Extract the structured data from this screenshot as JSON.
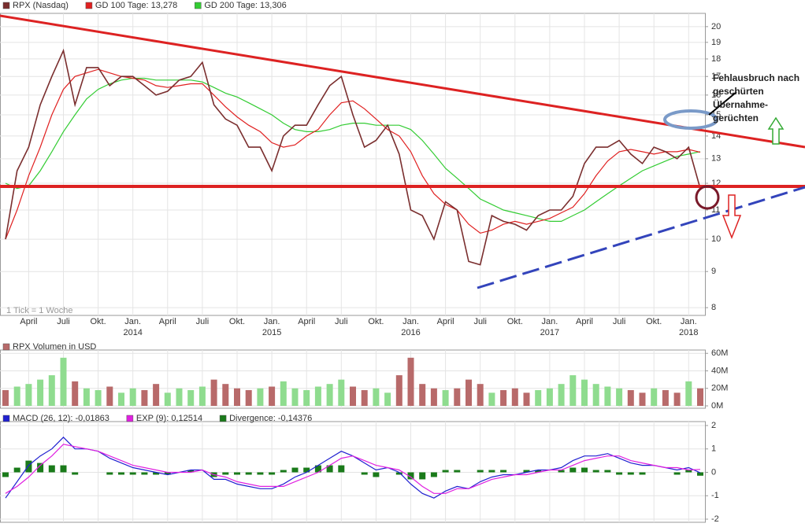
{
  "chart_data": [
    {
      "type": "line",
      "log_scale": true,
      "grid": true,
      "categories": [
        null,
        null,
        "April",
        null,
        null,
        "Juli",
        null,
        null,
        "Okt.",
        null,
        null,
        "Jan.",
        null,
        null,
        "April",
        null,
        null,
        "Juli",
        null,
        null,
        "Okt.",
        null,
        null,
        "Jan.",
        null,
        null,
        "April",
        null,
        null,
        "Juli",
        null,
        null,
        "Okt.",
        null,
        null,
        "Jan.",
        null,
        null,
        "April",
        null,
        null,
        "Juli",
        null,
        null,
        "Okt.",
        null,
        null,
        "Jan.",
        null,
        null,
        "April",
        null,
        null,
        "Juli",
        null,
        null,
        "Okt.",
        null,
        null,
        "Jan.",
        null
      ],
      "year_labels": [
        null,
        null,
        null,
        null,
        null,
        null,
        null,
        null,
        null,
        null,
        null,
        "2014",
        null,
        null,
        null,
        null,
        null,
        null,
        null,
        null,
        null,
        null,
        null,
        "2015",
        null,
        null,
        null,
        null,
        null,
        null,
        null,
        null,
        null,
        null,
        null,
        "2016",
        null,
        null,
        null,
        null,
        null,
        null,
        null,
        null,
        null,
        null,
        null,
        "2017",
        null,
        null,
        null,
        null,
        null,
        null,
        null,
        null,
        null,
        null,
        null,
        "2018",
        null
      ],
      "ylim": [
        7.82,
        20.83
      ],
      "yticks": [
        8,
        9,
        10,
        11,
        12,
        13,
        14,
        15,
        16,
        17,
        18,
        19,
        20
      ],
      "series": [
        {
          "name": "RPX (Nasdaq)",
          "color": "#7a2e2e",
          "values": [
            10.0,
            12.5,
            13.5,
            15.5,
            17.0,
            18.5,
            15.5,
            17.5,
            17.5,
            16.5,
            17.0,
            17.0,
            16.5,
            16.0,
            16.2,
            16.8,
            17.0,
            17.8,
            15.5,
            14.8,
            14.5,
            13.5,
            13.5,
            12.5,
            14.0,
            14.5,
            14.5,
            15.5,
            16.5,
            17.0,
            15.0,
            13.5,
            13.8,
            14.5,
            13.2,
            11.0,
            10.8,
            10.0,
            11.3,
            11.0,
            9.3,
            9.2,
            10.8,
            10.6,
            10.5,
            10.3,
            10.8,
            11.0,
            11.0,
            11.5,
            12.8,
            13.5,
            13.5,
            13.8,
            13.2,
            12.8,
            13.5,
            13.3,
            13.0,
            13.5,
            11.8
          ]
        },
        {
          "name": "GD 100 Tage: 13,278",
          "color": "#e02020",
          "values": [
            10.0,
            11.0,
            12.3,
            13.5,
            15.0,
            16.3,
            17.0,
            17.2,
            17.4,
            17.2,
            17.0,
            16.9,
            16.8,
            16.5,
            16.4,
            16.5,
            16.6,
            16.6,
            16.0,
            15.4,
            14.9,
            14.5,
            14.2,
            13.7,
            13.5,
            13.6,
            14.0,
            14.3,
            15.0,
            15.6,
            15.7,
            15.3,
            14.8,
            14.3,
            14.0,
            13.3,
            12.3,
            11.6,
            11.2,
            11.0,
            10.5,
            10.2,
            10.3,
            10.5,
            10.6,
            10.5,
            10.6,
            10.7,
            10.9,
            11.1,
            11.6,
            12.3,
            12.9,
            13.3,
            13.4,
            13.3,
            13.2,
            13.3,
            13.3,
            13.4,
            13.278
          ]
        },
        {
          "name": "GD 200 Tage: 13,306",
          "color": "#33cc33",
          "values": [
            12.0,
            11.8,
            11.9,
            12.5,
            13.3,
            14.2,
            15.0,
            15.8,
            16.3,
            16.6,
            16.8,
            16.9,
            16.9,
            16.8,
            16.8,
            16.8,
            16.8,
            16.7,
            16.4,
            16.1,
            15.9,
            15.6,
            15.3,
            15.0,
            14.6,
            14.3,
            14.2,
            14.2,
            14.3,
            14.5,
            14.6,
            14.6,
            14.5,
            14.5,
            14.5,
            14.3,
            13.8,
            13.2,
            12.6,
            12.2,
            11.8,
            11.4,
            11.2,
            11.0,
            10.9,
            10.8,
            10.7,
            10.6,
            10.6,
            10.8,
            11.0,
            11.3,
            11.6,
            11.9,
            12.2,
            12.5,
            12.7,
            12.9,
            13.1,
            13.2,
            13.306
          ]
        }
      ],
      "note": "1 Tick = 1 Woche",
      "annotation": [
        "Fehlausbruch nach",
        "geschürten",
        "Übernahme-",
        "gerüchten"
      ]
    },
    {
      "type": "bar",
      "title": "RPX Volumen in USD",
      "color": "#b86a6a",
      "up_color": "#8fdc8f",
      "grid": true,
      "ylim": [
        0,
        62
      ],
      "yticks": [
        {
          "value": 0,
          "label": "0M"
        },
        {
          "value": 20,
          "label": "20M"
        },
        {
          "value": 40,
          "label": "40M"
        },
        {
          "value": 60,
          "label": "60M"
        }
      ],
      "values": [
        18,
        22,
        25,
        30,
        35,
        55,
        28,
        20,
        18,
        22,
        15,
        20,
        18,
        25,
        15,
        20,
        18,
        22,
        30,
        25,
        20,
        18,
        20,
        22,
        28,
        20,
        18,
        22,
        25,
        30,
        22,
        18,
        20,
        15,
        35,
        55,
        25,
        20,
        18,
        20,
        30,
        25,
        15,
        18,
        20,
        15,
        18,
        20,
        25,
        35,
        30,
        25,
        22,
        20,
        18,
        15,
        20,
        18,
        15,
        28,
        20
      ]
    },
    {
      "type": "combo",
      "grid": true,
      "ylim": [
        -2.1,
        2.1
      ],
      "yticks": [
        -2,
        -1,
        0,
        1,
        2
      ],
      "series": [
        {
          "name": "MACD (26, 12): -0,01863",
          "color": "#2020d0",
          "style": "line",
          "values": [
            -1.1,
            -0.4,
            0.3,
            0.7,
            1.0,
            1.5,
            1.0,
            1.0,
            0.9,
            0.6,
            0.4,
            0.2,
            0.1,
            0.0,
            -0.1,
            0.0,
            0.1,
            0.1,
            -0.3,
            -0.3,
            -0.5,
            -0.6,
            -0.7,
            -0.7,
            -0.5,
            -0.2,
            0.0,
            0.3,
            0.6,
            0.9,
            0.7,
            0.4,
            0.1,
            0.2,
            0.0,
            -0.5,
            -0.9,
            -1.1,
            -0.8,
            -0.6,
            -0.7,
            -0.4,
            -0.2,
            -0.1,
            -0.1,
            0.0,
            0.1,
            0.1,
            0.2,
            0.5,
            0.7,
            0.7,
            0.8,
            0.6,
            0.4,
            0.3,
            0.3,
            0.2,
            0.1,
            0.2,
            -0.01863
          ]
        },
        {
          "name": "EXP (9): 0,12514",
          "color": "#e020e0",
          "style": "line",
          "values": [
            -0.9,
            -0.6,
            -0.2,
            0.3,
            0.7,
            1.2,
            1.1,
            1.0,
            0.9,
            0.7,
            0.5,
            0.3,
            0.2,
            0.1,
            0.0,
            0.0,
            0.0,
            0.1,
            -0.1,
            -0.2,
            -0.4,
            -0.5,
            -0.6,
            -0.6,
            -0.6,
            -0.4,
            -0.2,
            0.0,
            0.3,
            0.6,
            0.7,
            0.5,
            0.3,
            0.2,
            0.1,
            -0.2,
            -0.6,
            -0.9,
            -0.9,
            -0.7,
            -0.7,
            -0.5,
            -0.3,
            -0.2,
            -0.1,
            -0.1,
            0.0,
            0.1,
            0.1,
            0.3,
            0.5,
            0.6,
            0.7,
            0.7,
            0.5,
            0.4,
            0.3,
            0.2,
            0.2,
            0.1,
            0.12514
          ]
        },
        {
          "name": "Divergence: -0,14376",
          "color": "#1a7a1a",
          "style": "bar",
          "values": [
            -0.2,
            0.2,
            0.5,
            0.4,
            0.3,
            0.3,
            -0.1,
            0,
            0,
            -0.1,
            -0.1,
            -0.1,
            -0.1,
            -0.1,
            -0.1,
            0,
            0.1,
            0,
            -0.2,
            -0.1,
            -0.1,
            -0.1,
            -0.1,
            -0.1,
            0.1,
            0.2,
            0.2,
            0.3,
            0.3,
            0.3,
            0,
            -0.1,
            -0.2,
            0,
            -0.1,
            -0.3,
            -0.3,
            -0.2,
            0.1,
            0.1,
            0,
            0.1,
            0.1,
            0.1,
            0,
            0.1,
            0.1,
            0,
            0.1,
            0.2,
            0.2,
            0.1,
            0.1,
            -0.1,
            -0.1,
            -0.1,
            0,
            0,
            -0.1,
            0.1,
            -0.14376
          ]
        }
      ]
    }
  ]
}
